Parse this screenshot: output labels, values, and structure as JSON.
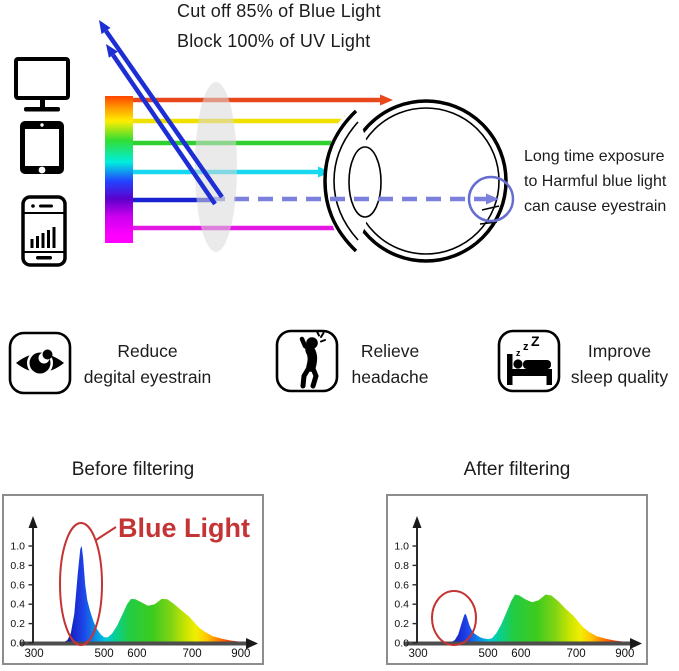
{
  "colors": {
    "accent_red": "#c43434",
    "dashed_ray": "#7a80dc",
    "highlight_circle": "#666dd0",
    "reflected_ray": "#1d2ed4",
    "lens_gray": "#d9d9d9",
    "axis_gray": "#4d4d4d"
  },
  "top": {
    "headline1": "Cut off 85% of Blue Light",
    "headline2": "Block 100% of UV Light",
    "note": "Long time exposure\nto Harmful blue light\ncan cause eyestrain",
    "spectrum_bar_colors": [
      "#ff4400",
      "#ff9900",
      "#ffee00",
      "#33dd33",
      "#00eedd",
      "#2244ff",
      "#5c00cc",
      "#cc00ee",
      "#ff00ff"
    ],
    "rays": [
      {
        "name": "red-ray",
        "color": "#e8481c"
      },
      {
        "name": "yellow-ray",
        "color": "#f0e000"
      },
      {
        "name": "green-ray",
        "color": "#2fd02f"
      },
      {
        "name": "cyan-ray",
        "color": "#17d8ee"
      },
      {
        "name": "blue-ray",
        "color": "#1822cf"
      },
      {
        "name": "magenta-ray",
        "color": "#e318e3"
      }
    ]
  },
  "benefits": [
    {
      "icon": "eye-icon",
      "label": "Reduce\ndegital eyestrain"
    },
    {
      "icon": "headache-icon",
      "label": "Relieve\nheadache"
    },
    {
      "icon": "sleep-icon",
      "label": "Improve\nsleep quality",
      "zzz": [
        "z",
        "z",
        "Z"
      ]
    }
  ],
  "spectrum_gradient": [
    [
      0,
      "#0d1280"
    ],
    [
      0.08,
      "#1930d8"
    ],
    [
      0.12,
      "#1e46e8"
    ],
    [
      0.18,
      "#0b8ae8"
    ],
    [
      0.24,
      "#00c8d8"
    ],
    [
      0.3,
      "#0ad08a"
    ],
    [
      0.37,
      "#22cc44"
    ],
    [
      0.5,
      "#3ecb1e"
    ],
    [
      0.6,
      "#7fd414"
    ],
    [
      0.68,
      "#c8e400"
    ],
    [
      0.74,
      "#f2ee00"
    ],
    [
      0.8,
      "#ffc400"
    ],
    [
      0.87,
      "#ff7300"
    ],
    [
      0.94,
      "#f03000"
    ],
    [
      1,
      "#d81800"
    ]
  ],
  "chart_data": [
    {
      "type": "area",
      "title": "Before filtering",
      "xlabel": "",
      "ylabel": "",
      "x_ticks": [
        300,
        500,
        600,
        700,
        900
      ],
      "y_ticks": [
        "0.0",
        "0.2",
        "0.4",
        "0.6",
        "0.8",
        "1.0"
      ],
      "xlim": [
        300,
        960
      ],
      "ylim": [
        0,
        1.1
      ],
      "annotation": "Blue Light",
      "series": [
        {
          "points": [
            [
              380,
              0.0
            ],
            [
              395,
              0.03
            ],
            [
              405,
              0.1
            ],
            [
              415,
              0.3
            ],
            [
              425,
              0.72
            ],
            [
              432,
              0.97
            ],
            [
              436,
              1.0
            ],
            [
              440,
              0.88
            ],
            [
              446,
              0.6
            ],
            [
              452,
              0.44
            ],
            [
              460,
              0.33
            ],
            [
              470,
              0.22
            ],
            [
              480,
              0.14
            ],
            [
              490,
              0.09
            ],
            [
              500,
              0.06
            ],
            [
              512,
              0.06
            ],
            [
              525,
              0.1
            ],
            [
              540,
              0.18
            ],
            [
              555,
              0.29
            ],
            [
              570,
              0.4
            ],
            [
              582,
              0.455
            ],
            [
              595,
              0.45
            ],
            [
              608,
              0.42
            ],
            [
              620,
              0.385
            ],
            [
              632,
              0.4
            ],
            [
              645,
              0.455
            ],
            [
              655,
              0.45
            ],
            [
              668,
              0.4
            ],
            [
              680,
              0.34
            ],
            [
              695,
              0.27
            ],
            [
              710,
              0.21
            ],
            [
              730,
              0.155
            ],
            [
              755,
              0.11
            ],
            [
              785,
              0.07
            ],
            [
              820,
              0.045
            ],
            [
              860,
              0.025
            ],
            [
              900,
              0.013
            ],
            [
              950,
              0.004
            ]
          ]
        }
      ]
    },
    {
      "type": "area",
      "title": "After filtering",
      "xlabel": "",
      "ylabel": "",
      "x_ticks": [
        300,
        500,
        600,
        700,
        900
      ],
      "y_ticks": [
        "0.0",
        "0.2",
        "0.4",
        "0.6",
        "0.8",
        "1.0"
      ],
      "xlim": [
        300,
        960
      ],
      "ylim": [
        0,
        1.1
      ],
      "annotation": null,
      "series": [
        {
          "points": [
            [
              380,
              0.0
            ],
            [
              395,
              0.01
            ],
            [
              405,
              0.03
            ],
            [
              415,
              0.09
            ],
            [
              425,
              0.21
            ],
            [
              432,
              0.29
            ],
            [
              436,
              0.3
            ],
            [
              440,
              0.26
            ],
            [
              446,
              0.19
            ],
            [
              452,
              0.14
            ],
            [
              460,
              0.1
            ],
            [
              470,
              0.075
            ],
            [
              480,
              0.055
            ],
            [
              490,
              0.045
            ],
            [
              500,
              0.04
            ],
            [
              512,
              0.05
            ],
            [
              525,
              0.1
            ],
            [
              540,
              0.19
            ],
            [
              555,
              0.31
            ],
            [
              570,
              0.43
            ],
            [
              582,
              0.5
            ],
            [
              595,
              0.49
            ],
            [
              608,
              0.45
            ],
            [
              620,
              0.42
            ],
            [
              632,
              0.44
            ],
            [
              645,
              0.5
            ],
            [
              655,
              0.49
            ],
            [
              668,
              0.43
            ],
            [
              680,
              0.36
            ],
            [
              695,
              0.28
            ],
            [
              710,
              0.22
            ],
            [
              730,
              0.16
            ],
            [
              755,
              0.11
            ],
            [
              785,
              0.07
            ],
            [
              820,
              0.045
            ],
            [
              860,
              0.025
            ],
            [
              900,
              0.013
            ],
            [
              950,
              0.004
            ]
          ]
        }
      ]
    }
  ]
}
